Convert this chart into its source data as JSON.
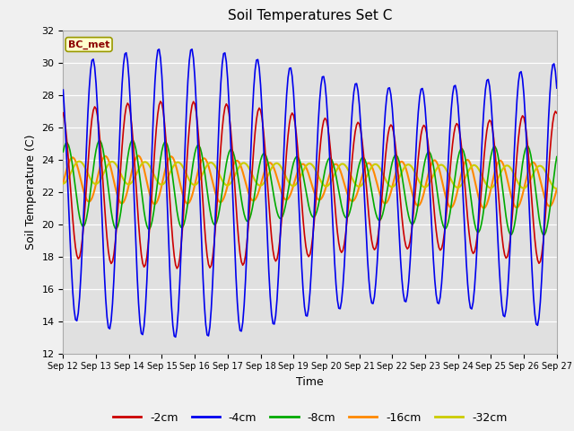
{
  "title": "Soil Temperatures Set C",
  "xlabel": "Time",
  "ylabel": "Soil Temperature (C)",
  "ylim": [
    12,
    32
  ],
  "annotation": "BC_met",
  "series_labels": [
    "-2cm",
    "-4cm",
    "-8cm",
    "-16cm",
    "-32cm"
  ],
  "series_colors": [
    "#cc0000",
    "#0000ee",
    "#00aa00",
    "#ff8800",
    "#cccc00"
  ],
  "background_color": "#e0e0e0",
  "fig_facecolor": "#f0f0f0",
  "x_tick_labels": [
    "Sep 12",
    "Sep 13",
    "Sep 14",
    "Sep 15",
    "Sep 16",
    "Sep 17",
    "Sep 18",
    "Sep 19",
    "Sep 20",
    "Sep 21",
    "Sep 22",
    "Sep 23",
    "Sep 24",
    "Sep 25",
    "Sep 26",
    "Sep 27"
  ],
  "yticks": [
    12,
    14,
    16,
    18,
    20,
    22,
    24,
    26,
    28,
    30,
    32
  ]
}
